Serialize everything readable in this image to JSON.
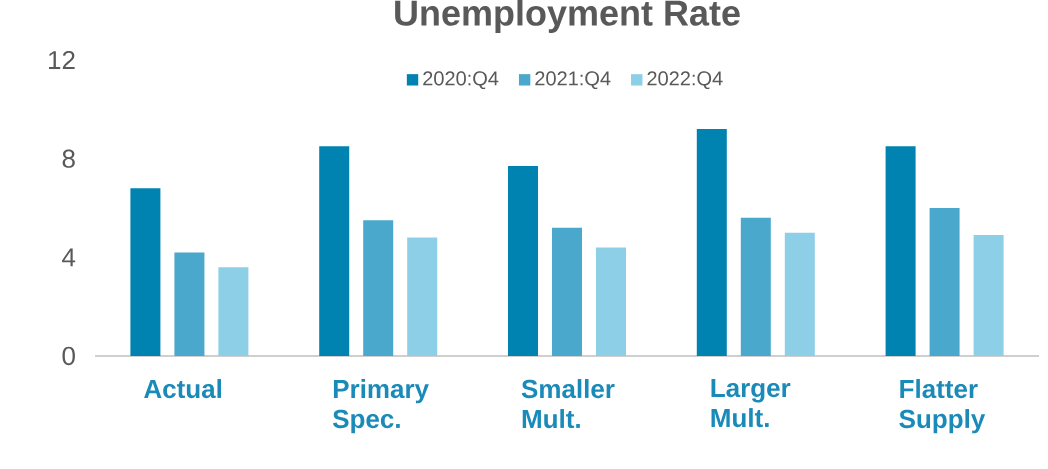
{
  "chart_data": {
    "type": "bar",
    "title": "Unemployment Rate",
    "categories": [
      "Actual",
      "Primary Spec.",
      "Smaller Mult.",
      "Larger Mult.",
      "Flatter Supply"
    ],
    "series": [
      {
        "name": "2020:Q4",
        "color": "#0083b0",
        "values": [
          6.8,
          8.5,
          7.7,
          9.2,
          8.5
        ]
      },
      {
        "name": "2021:Q4",
        "color": "#4aa8cc",
        "values": [
          4.2,
          5.5,
          5.2,
          5.6,
          6.0
        ]
      },
      {
        "name": "2022:Q4",
        "color": "#8ecfe8",
        "values": [
          3.6,
          4.8,
          4.4,
          5.0,
          4.9
        ]
      }
    ],
    "ylim": [
      0,
      12
    ],
    "yticks": [
      0,
      4,
      8,
      12
    ],
    "legend": "top"
  }
}
